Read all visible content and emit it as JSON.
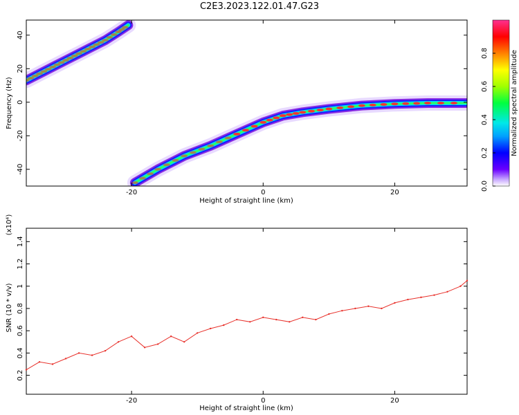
{
  "title": "C2E3.2023.122.01.47.G23",
  "chart_data": [
    {
      "type": "heatmap",
      "xlabel": "Height of straight line (km)",
      "ylabel": "Frequency (Hz)",
      "xlim": [
        -36,
        31
      ],
      "ylim": [
        -50,
        49
      ],
      "xticks": [
        -20,
        0,
        20
      ],
      "yticks": [
        -40,
        -20,
        0,
        20,
        40
      ],
      "colorbar": {
        "label": "Normalized spectral amplitude",
        "range": [
          0,
          1
        ],
        "ticks": [
          0.0,
          0.2,
          0.4,
          0.6,
          0.8
        ]
      },
      "ridges": [
        {
          "x": [
            -36,
            -34,
            -32,
            -30,
            -28,
            -26,
            -24,
            -22,
            -20.5
          ],
          "y": [
            13,
            17,
            21,
            25,
            29,
            33,
            37,
            42,
            46
          ]
        },
        {
          "x": [
            -19.5,
            -16,
            -12,
            -8,
            -4,
            0,
            3,
            6,
            10,
            15,
            20,
            25,
            31
          ],
          "y": [
            -48,
            -40,
            -32,
            -26,
            -19,
            -12,
            -8,
            -6,
            -4,
            -2,
            -1,
            -0.5,
            -0.5
          ]
        }
      ]
    },
    {
      "type": "line",
      "xlabel": "Height of straight line (km)",
      "ylabel": "SNR (10 * v/v)",
      "scale_label": "(x10⁴)",
      "xlim": [
        -36,
        31
      ],
      "ylim": [
        0.03,
        1.52
      ],
      "xticks": [
        -20,
        0,
        20
      ],
      "yticks": [
        0.2,
        0.4,
        0.6,
        0.8,
        1.0,
        1.2,
        1.4
      ],
      "series": [
        {
          "x": [
            -36,
            -34,
            -32,
            -30,
            -28,
            -26,
            -24,
            -22,
            -20,
            -18,
            -16,
            -14,
            -12,
            -10,
            -8,
            -6,
            -4,
            -2,
            0,
            2,
            4,
            6,
            8,
            10,
            12,
            14,
            16,
            18,
            20,
            22,
            24,
            26,
            28,
            30,
            31
          ],
          "values": [
            0.25,
            0.32,
            0.3,
            0.35,
            0.4,
            0.38,
            0.42,
            0.5,
            0.55,
            0.45,
            0.48,
            0.55,
            0.5,
            0.58,
            0.62,
            0.65,
            0.7,
            0.68,
            0.72,
            0.7,
            0.68,
            0.72,
            0.7,
            0.75,
            0.78,
            0.8,
            0.82,
            0.8,
            0.85,
            0.88,
            0.9,
            0.92,
            0.95,
            1.0,
            1.05
          ],
          "color": "#e8312b"
        }
      ]
    }
  ]
}
